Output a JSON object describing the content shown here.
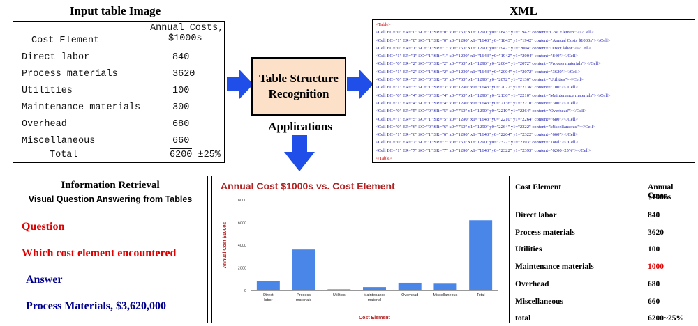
{
  "titles": {
    "input": "Input table Image",
    "xml": "XML",
    "applications": "Applications"
  },
  "scan_table": {
    "header_left": "Cost Element",
    "header_right_1": "Annual Costs,",
    "header_right_2": "$1000s",
    "rows": [
      {
        "label": "Direct labor",
        "value": "840"
      },
      {
        "label": "Process materials",
        "value": "3620"
      },
      {
        "label": "Utilities",
        "value": "100"
      },
      {
        "label": "Maintenance materials",
        "value": "300"
      },
      {
        "label": "Overhead",
        "value": "680"
      },
      {
        "label": "Miscellaneous",
        "value": "660"
      },
      {
        "label": "Total",
        "value": "6200 ±25%"
      }
    ]
  },
  "tsr": {
    "line1": "Table Structure",
    "line2": "Recognition"
  },
  "xml_lines": [
    "<Table>",
    "<Cell EC=\"0\" ER=\"0\" SC=\"0\" SR=\"0\" x0=\"760\" x1=\"1290\" y0=\"1843\" y1=\"1942\" content=\"Cost Element\"></Cell>",
    "<Cell EC=\"1\" ER=\"0\" SC=\"1\" SR=\"0\" x0=\"1290\" x1=\"1643\" y0=\"1843\" y1=\"1942\" content=\"Annual Costs $1000s\"></Cell>",
    "<Cell EC=\"0\" ER=\"1\" SC=\"0\" SR=\"1\" x0=\"760\" x1=\"1290\" y0=\"1942\" y1=\"2004\" content=\"Direct labor\"></Cell>",
    "<Cell EC=\"1\" ER=\"1\" SC=\"1\" SR=\"1\" x0=\"1290\" x1=\"1643\" y0=\"1942\" y1=\"2004\" content=\"840\"></Cell>",
    "<Cell EC=\"0\" ER=\"2\" SC=\"0\" SR=\"2\" x0=\"760\" x1=\"1290\" y0=\"2004\" y1=\"2072\" content=\"Process materials\"></Cell>",
    "<Cell EC=\"1\" ER=\"2\" SC=\"1\" SR=\"2\" x0=\"1290\" x1=\"1643\" y0=\"2004\" y1=\"2072\" content=\"3620\"></Cell>",
    "<Cell EC=\"0\" ER=\"3\" SC=\"0\" SR=\"3\" x0=\"760\" x1=\"1290\" y0=\"2072\" y1=\"2136\" content=\"Utilities\"></Cell>",
    "<Cell EC=\"1\" ER=\"3\" SC=\"1\" SR=\"3\" x0=\"1290\" x1=\"1643\" y0=\"2072\" y1=\"2136\" content=\"100\"></Cell>",
    "<Cell EC=\"0\" ER=\"4\" SC=\"0\" SR=\"4\" x0=\"760\" x1=\"1290\" y0=\"2136\" y1=\"2210\" content=\"Maintenance materials\"></Cell>",
    "<Cell EC=\"1\" ER=\"4\" SC=\"1\" SR=\"4\" x0=\"1290\" x1=\"1643\" y0=\"2136\" y1=\"2210\" content=\"300\"></Cell>",
    "<Cell EC=\"0\" ER=\"5\" SC=\"0\" SR=\"5\" x0=\"760\" x1=\"1290\" y0=\"2210\" y1=\"2264\" content=\"Overhead\"></Cell>",
    "<Cell EC=\"1\" ER=\"5\" SC=\"1\" SR=\"5\" x0=\"1290\" x1=\"1643\" y0=\"2210\" y1=\"2264\" content=\"680\"></Cell>",
    "<Cell EC=\"0\" ER=\"6\" SC=\"0\" SR=\"6\" x0=\"760\" x1=\"1290\" y0=\"2264\" y1=\"2322\" content=\"Miscellaneous\"></Cell>",
    "<Cell EC=\"1\" ER=\"6\" SC=\"1\" SR=\"6\" x0=\"1290\" x1=\"1643\" y0=\"2264\" y1=\"2322\" content=\"660\"></Cell>",
    "<Cell EC=\"0\" ER=\"7\" SC=\"0\" SR=\"7\" x0=\"760\" x1=\"1290\" y0=\"2322\" y1=\"2393\" content=\"Total\"></Cell>",
    "<Cell EC=\"1\" ER=\"7\" SC=\"1\" SR=\"7\" x0=\"1290\" x1=\"1643\" y0=\"2322\" y1=\"2393\" content=\"6200~25%\"></Cell>",
    "</Table>"
  ],
  "qa": {
    "title": "Information Retrieval",
    "subtitle": "Visual Question Answering from Tables",
    "question_label": "Question",
    "question": "Which cost element encountered",
    "answer_label": "Answer",
    "answer": "Process Materials, $3,620,000"
  },
  "chart_data": {
    "type": "bar",
    "title": "Annual Cost $1000s vs. Cost Element",
    "xlabel": "Cost Element",
    "ylabel": "Annual Cost $1000s",
    "categories": [
      "Direct labor",
      "Process materials",
      "Utilities",
      "Maintenance material",
      "Overhead",
      "Miscellaneous",
      "Total"
    ],
    "values": [
      840,
      3620,
      100,
      300,
      680,
      660,
      6200
    ],
    "ylim": [
      0,
      8000
    ],
    "yticks": [
      "0",
      "2000",
      "4000",
      "6000",
      "8000"
    ],
    "bar_color": "#4a86e8",
    "title_color": "#b22222",
    "grid": false
  },
  "result_table": {
    "header_left": "Cost Element",
    "header_right_1": "Annual Costs,",
    "header_right_2": "$1000s",
    "rows": [
      {
        "label": "Direct labor",
        "value": "840"
      },
      {
        "label": "Process materials",
        "value": "3620"
      },
      {
        "label": "Utilities",
        "value": "100"
      },
      {
        "label": "Maintenance materials",
        "value": "1000",
        "highlight": true
      },
      {
        "label": "Overhead",
        "value": "680"
      },
      {
        "label": "Miscellaneous",
        "value": "660"
      },
      {
        "label": "total",
        "value": "6200~25%"
      }
    ],
    "highlight_color": "#e00000"
  },
  "colors": {
    "arrow": "#1f4fe8",
    "tsr_fill": "#fde0c8",
    "question": "#e00000",
    "answer": "#00008b"
  }
}
